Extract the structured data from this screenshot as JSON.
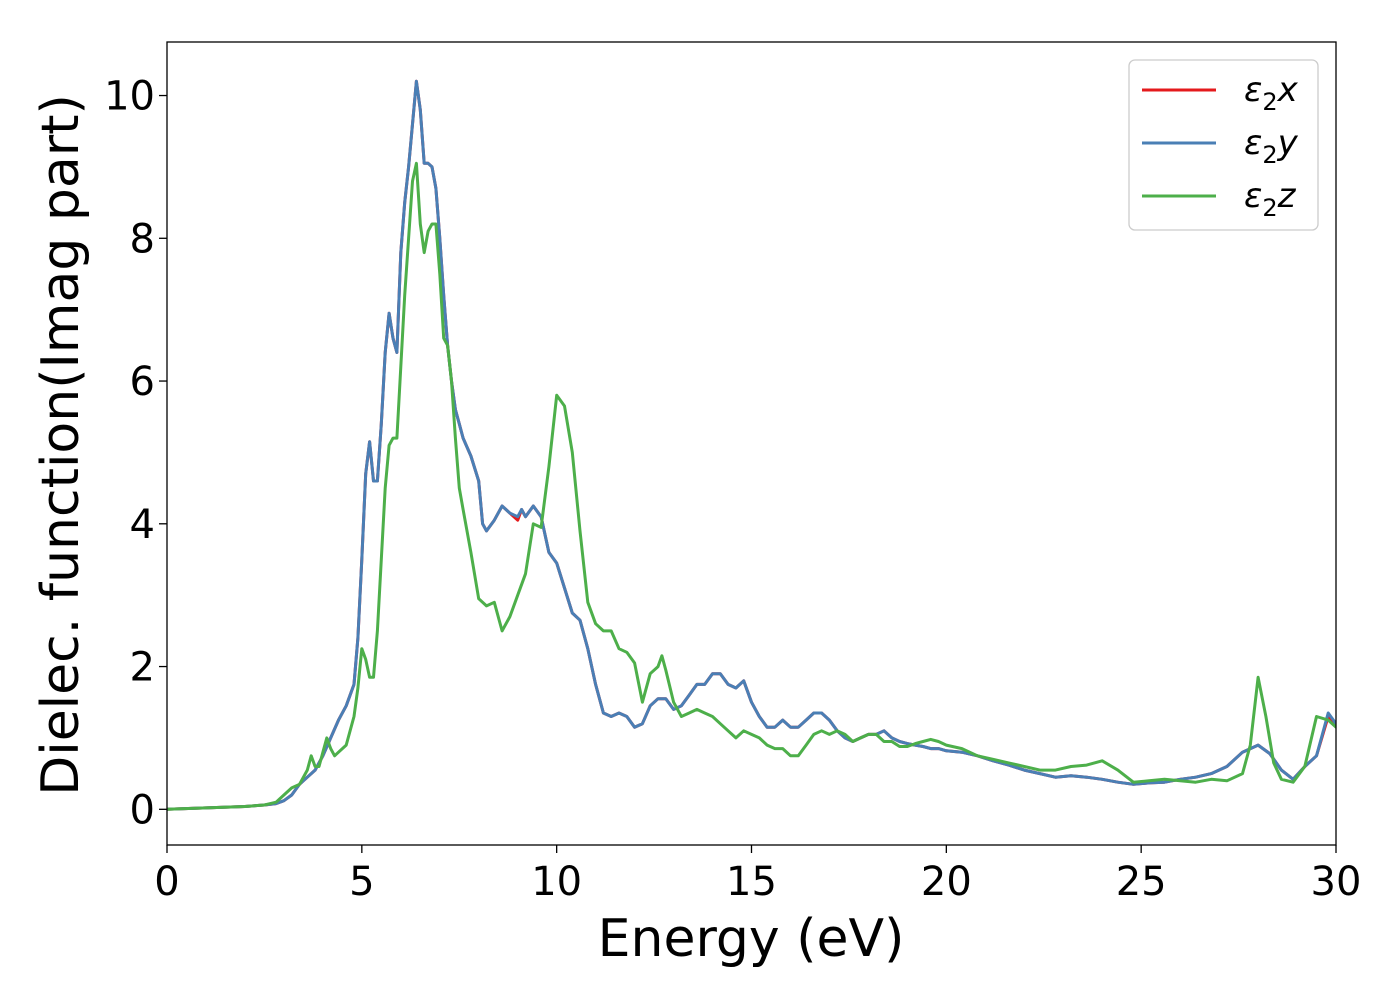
{
  "chart_data": {
    "type": "line",
    "title": "",
    "xlabel": "Energy (eV)",
    "ylabel": "Dielec. function(Imag part)",
    "xlim": [
      0,
      30
    ],
    "ylim": [
      -0.5,
      10.75
    ],
    "xticks": [
      0,
      5,
      10,
      15,
      20,
      25,
      30
    ],
    "yticks": [
      0,
      2,
      4,
      6,
      8,
      10
    ],
    "grid": false,
    "legend_position": "top-right",
    "series": [
      {
        "name": "ε₂x",
        "legend_main": "ε",
        "legend_sub": "2",
        "legend_var": "x",
        "color": "#e41a1c",
        "x": [
          0,
          1,
          2,
          2.5,
          2.8,
          3.0,
          3.2,
          3.4,
          3.6,
          3.8,
          4.0,
          4.2,
          4.4,
          4.6,
          4.8,
          4.9,
          5.0,
          5.1,
          5.2,
          5.3,
          5.4,
          5.5,
          5.6,
          5.7,
          5.8,
          5.9,
          6.0,
          6.1,
          6.2,
          6.3,
          6.4,
          6.5,
          6.6,
          6.7,
          6.8,
          6.9,
          7.0,
          7.1,
          7.2,
          7.3,
          7.4,
          7.5,
          7.6,
          7.8,
          8.0,
          8.1,
          8.2,
          8.4,
          8.6,
          8.8,
          9.0,
          9.1,
          9.2,
          9.4,
          9.6,
          9.8,
          10.0,
          10.2,
          10.4,
          10.6,
          10.8,
          11.0,
          11.2,
          11.4,
          11.6,
          11.8,
          12.0,
          12.2,
          12.4,
          12.6,
          12.8,
          13.0,
          13.2,
          13.4,
          13.6,
          13.8,
          14.0,
          14.2,
          14.4,
          14.6,
          14.8,
          15.0,
          15.2,
          15.4,
          15.6,
          15.8,
          16.0,
          16.2,
          16.4,
          16.6,
          16.8,
          17.0,
          17.2,
          17.4,
          17.6,
          17.8,
          18.0,
          18.2,
          18.4,
          18.6,
          18.8,
          19.0,
          19.2,
          19.4,
          19.6,
          19.8,
          20.0,
          20.4,
          20.8,
          21.2,
          21.6,
          22.0,
          22.4,
          22.8,
          23.2,
          23.6,
          24.0,
          24.4,
          24.8,
          25.2,
          25.6,
          26.0,
          26.4,
          26.8,
          27.2,
          27.6,
          28.0,
          28.3,
          28.6,
          28.9,
          29.2,
          29.5,
          29.8,
          30.0
        ],
        "y": [
          0,
          0.02,
          0.04,
          0.06,
          0.08,
          0.12,
          0.2,
          0.35,
          0.45,
          0.55,
          0.75,
          1.0,
          1.25,
          1.45,
          1.75,
          2.4,
          3.5,
          4.7,
          5.15,
          4.6,
          4.6,
          5.4,
          6.4,
          6.95,
          6.6,
          6.4,
          7.8,
          8.5,
          9.0,
          9.6,
          10.2,
          9.8,
          9.05,
          9.05,
          9.0,
          8.7,
          8.0,
          7.2,
          6.5,
          6.0,
          5.6,
          5.4,
          5.2,
          4.95,
          4.6,
          4.0,
          3.9,
          4.05,
          4.25,
          4.15,
          4.05,
          4.2,
          4.1,
          4.25,
          4.1,
          3.6,
          3.45,
          3.1,
          2.75,
          2.65,
          2.25,
          1.75,
          1.35,
          1.3,
          1.35,
          1.3,
          1.15,
          1.2,
          1.45,
          1.55,
          1.55,
          1.4,
          1.45,
          1.6,
          1.75,
          1.75,
          1.9,
          1.9,
          1.75,
          1.7,
          1.8,
          1.5,
          1.3,
          1.15,
          1.15,
          1.25,
          1.15,
          1.15,
          1.25,
          1.35,
          1.35,
          1.25,
          1.1,
          1.0,
          0.95,
          1.0,
          1.05,
          1.05,
          1.1,
          1.0,
          0.95,
          0.92,
          0.9,
          0.88,
          0.85,
          0.85,
          0.82,
          0.8,
          0.75,
          0.68,
          0.62,
          0.55,
          0.5,
          0.45,
          0.47,
          0.45,
          0.42,
          0.38,
          0.35,
          0.37,
          0.38,
          0.42,
          0.45,
          0.5,
          0.6,
          0.8,
          0.9,
          0.78,
          0.55,
          0.42,
          0.6,
          0.75,
          1.3,
          1.2
        ]
      },
      {
        "name": "ε₂y",
        "legend_main": "ε",
        "legend_sub": "2",
        "legend_var": "y",
        "color": "#4a7fb5",
        "x": [
          0,
          1,
          2,
          2.5,
          2.8,
          3.0,
          3.2,
          3.4,
          3.6,
          3.8,
          4.0,
          4.2,
          4.4,
          4.6,
          4.8,
          4.9,
          5.0,
          5.1,
          5.2,
          5.3,
          5.4,
          5.5,
          5.6,
          5.7,
          5.8,
          5.9,
          6.0,
          6.1,
          6.2,
          6.3,
          6.4,
          6.5,
          6.6,
          6.7,
          6.8,
          6.9,
          7.0,
          7.1,
          7.2,
          7.3,
          7.4,
          7.5,
          7.6,
          7.8,
          8.0,
          8.1,
          8.2,
          8.4,
          8.6,
          8.8,
          9.0,
          9.1,
          9.2,
          9.4,
          9.6,
          9.8,
          10.0,
          10.2,
          10.4,
          10.6,
          10.8,
          11.0,
          11.2,
          11.4,
          11.6,
          11.8,
          12.0,
          12.2,
          12.4,
          12.6,
          12.8,
          13.0,
          13.2,
          13.4,
          13.6,
          13.8,
          14.0,
          14.2,
          14.4,
          14.6,
          14.8,
          15.0,
          15.2,
          15.4,
          15.6,
          15.8,
          16.0,
          16.2,
          16.4,
          16.6,
          16.8,
          17.0,
          17.2,
          17.4,
          17.6,
          17.8,
          18.0,
          18.2,
          18.4,
          18.6,
          18.8,
          19.0,
          19.2,
          19.4,
          19.6,
          19.8,
          20.0,
          20.4,
          20.8,
          21.2,
          21.6,
          22.0,
          22.4,
          22.8,
          23.2,
          23.6,
          24.0,
          24.4,
          24.8,
          25.2,
          25.6,
          26.0,
          26.4,
          26.8,
          27.2,
          27.6,
          28.0,
          28.3,
          28.6,
          28.9,
          29.2,
          29.5,
          29.8,
          30.0
        ],
        "y": [
          0,
          0.02,
          0.04,
          0.06,
          0.08,
          0.12,
          0.2,
          0.35,
          0.45,
          0.55,
          0.75,
          1.0,
          1.25,
          1.45,
          1.75,
          2.4,
          3.5,
          4.7,
          5.15,
          4.6,
          4.6,
          5.4,
          6.4,
          6.95,
          6.6,
          6.4,
          7.8,
          8.5,
          9.0,
          9.6,
          10.2,
          9.8,
          9.05,
          9.05,
          9.0,
          8.7,
          8.0,
          7.2,
          6.5,
          6.0,
          5.6,
          5.4,
          5.2,
          4.95,
          4.6,
          4.0,
          3.9,
          4.05,
          4.25,
          4.15,
          4.1,
          4.2,
          4.1,
          4.25,
          4.1,
          3.6,
          3.45,
          3.1,
          2.75,
          2.65,
          2.25,
          1.75,
          1.35,
          1.3,
          1.35,
          1.3,
          1.15,
          1.2,
          1.45,
          1.55,
          1.55,
          1.4,
          1.45,
          1.6,
          1.75,
          1.75,
          1.9,
          1.9,
          1.75,
          1.7,
          1.8,
          1.5,
          1.3,
          1.15,
          1.15,
          1.25,
          1.15,
          1.15,
          1.25,
          1.35,
          1.35,
          1.25,
          1.1,
          1.0,
          0.95,
          1.0,
          1.05,
          1.05,
          1.1,
          1.0,
          0.95,
          0.92,
          0.9,
          0.88,
          0.85,
          0.85,
          0.82,
          0.8,
          0.75,
          0.68,
          0.62,
          0.55,
          0.5,
          0.45,
          0.47,
          0.45,
          0.42,
          0.38,
          0.35,
          0.37,
          0.38,
          0.42,
          0.45,
          0.5,
          0.6,
          0.8,
          0.9,
          0.78,
          0.55,
          0.42,
          0.6,
          0.75,
          1.35,
          1.2
        ]
      },
      {
        "name": "ε₂z",
        "legend_main": "ε",
        "legend_sub": "2",
        "legend_var": "z",
        "color": "#4daf4a",
        "x": [
          0,
          1,
          2,
          2.5,
          2.8,
          3.0,
          3.2,
          3.4,
          3.6,
          3.7,
          3.8,
          3.9,
          4.0,
          4.1,
          4.2,
          4.3,
          4.4,
          4.6,
          4.8,
          4.9,
          5.0,
          5.1,
          5.2,
          5.3,
          5.4,
          5.5,
          5.6,
          5.7,
          5.8,
          5.9,
          6.0,
          6.1,
          6.2,
          6.3,
          6.4,
          6.5,
          6.6,
          6.7,
          6.8,
          6.9,
          7.0,
          7.1,
          7.2,
          7.3,
          7.4,
          7.5,
          7.6,
          7.8,
          8.0,
          8.2,
          8.4,
          8.6,
          8.8,
          9.0,
          9.2,
          9.4,
          9.6,
          9.8,
          10.0,
          10.2,
          10.4,
          10.6,
          10.8,
          11.0,
          11.2,
          11.4,
          11.6,
          11.8,
          12.0,
          12.2,
          12.4,
          12.6,
          12.7,
          12.8,
          13.0,
          13.2,
          13.4,
          13.6,
          13.8,
          14.0,
          14.2,
          14.4,
          14.6,
          14.8,
          15.0,
          15.2,
          15.4,
          15.6,
          15.8,
          16.0,
          16.2,
          16.4,
          16.6,
          16.8,
          17.0,
          17.2,
          17.4,
          17.6,
          17.8,
          18.0,
          18.2,
          18.4,
          18.6,
          18.8,
          19.0,
          19.2,
          19.4,
          19.6,
          19.8,
          20.0,
          20.4,
          20.8,
          21.2,
          21.6,
          22.0,
          22.4,
          22.8,
          23.2,
          23.6,
          24.0,
          24.4,
          24.8,
          25.2,
          25.6,
          26.0,
          26.4,
          26.8,
          27.2,
          27.6,
          27.8,
          28.0,
          28.2,
          28.4,
          28.6,
          28.9,
          29.2,
          29.5,
          29.8,
          30.0
        ],
        "y": [
          0,
          0.02,
          0.04,
          0.06,
          0.1,
          0.2,
          0.3,
          0.35,
          0.55,
          0.75,
          0.6,
          0.6,
          0.8,
          1.0,
          0.85,
          0.75,
          0.8,
          0.9,
          1.3,
          1.7,
          2.25,
          2.1,
          1.85,
          1.85,
          2.5,
          3.5,
          4.5,
          5.1,
          5.2,
          5.2,
          6.2,
          7.2,
          8.0,
          8.8,
          9.05,
          8.2,
          7.8,
          8.1,
          8.2,
          8.2,
          7.5,
          6.6,
          6.5,
          6.0,
          5.2,
          4.5,
          4.2,
          3.6,
          2.95,
          2.85,
          2.9,
          2.5,
          2.7,
          3.0,
          3.3,
          4.0,
          3.95,
          4.8,
          5.8,
          5.65,
          5.0,
          3.9,
          2.9,
          2.6,
          2.5,
          2.5,
          2.25,
          2.2,
          2.05,
          1.5,
          1.9,
          2.0,
          2.15,
          1.95,
          1.5,
          1.3,
          1.35,
          1.4,
          1.35,
          1.3,
          1.2,
          1.1,
          1.0,
          1.1,
          1.05,
          1.0,
          0.9,
          0.85,
          0.85,
          0.75,
          0.75,
          0.9,
          1.05,
          1.1,
          1.05,
          1.1,
          1.05,
          0.95,
          1.0,
          1.05,
          1.05,
          0.95,
          0.95,
          0.88,
          0.88,
          0.92,
          0.95,
          0.98,
          0.95,
          0.9,
          0.85,
          0.75,
          0.7,
          0.65,
          0.6,
          0.55,
          0.55,
          0.6,
          0.62,
          0.68,
          0.55,
          0.38,
          0.4,
          0.42,
          0.4,
          0.38,
          0.42,
          0.4,
          0.5,
          0.9,
          1.85,
          1.3,
          0.65,
          0.42,
          0.38,
          0.6,
          1.3,
          1.25,
          1.15
        ]
      }
    ]
  }
}
